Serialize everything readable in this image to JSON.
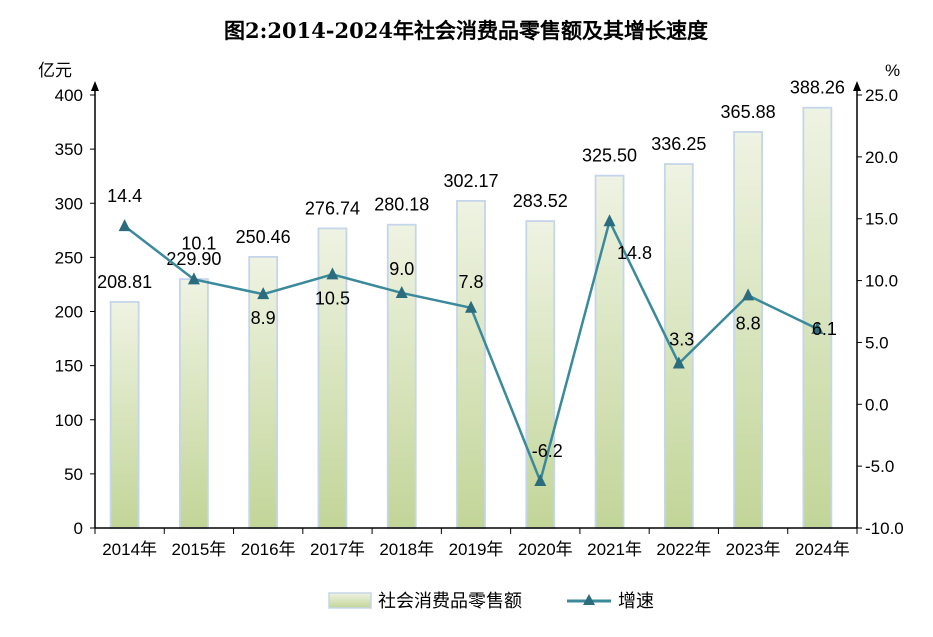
{
  "chart_data": {
    "type": "bar+line",
    "title": "图2:2014-2024年社会消费品零售额及其增长速度",
    "categories": [
      "2014年",
      "2015年",
      "2016年",
      "2017年",
      "2018年",
      "2019年",
      "2020年",
      "2021年",
      "2022年",
      "2023年",
      "2024年"
    ],
    "ylabel_left": "亿元",
    "ylabel_right": "%",
    "ylim_left": [
      0,
      400
    ],
    "yticks_left": [
      "0",
      "50",
      "100",
      "150",
      "200",
      "250",
      "300",
      "350",
      "400"
    ],
    "ylim_right": [
      -10,
      25
    ],
    "yticks_right": [
      "-10.0",
      "-5.0",
      "0.0",
      "5.0",
      "10.0",
      "15.0",
      "20.0",
      "25.0"
    ],
    "grid": false,
    "legend_position": "bottom",
    "series": [
      {
        "name": "社会消费品零售额",
        "type": "bar",
        "axis": "left",
        "values": [
          208.81,
          229.9,
          250.46,
          276.74,
          280.18,
          302.17,
          283.52,
          325.5,
          336.25,
          365.88,
          388.26
        ],
        "labels": [
          "208.81",
          "229.90",
          "250.46",
          "276.74",
          "280.18",
          "302.17",
          "283.52",
          "325.50",
          "336.25",
          "365.88",
          "388.26"
        ]
      },
      {
        "name": "增速",
        "type": "line",
        "axis": "right",
        "values": [
          14.4,
          10.1,
          8.9,
          10.5,
          9.0,
          7.8,
          -6.2,
          14.8,
          3.3,
          8.8,
          6.1
        ],
        "labels": [
          "14.4",
          "10.1",
          "8.9",
          "10.5",
          "9.0",
          "7.8",
          "-6.2",
          "14.8",
          "3.3",
          "8.8",
          "6.1"
        ]
      }
    ],
    "colors": {
      "bar_top": "#eff3e3",
      "bar_bottom": "#c2d598",
      "bar_border": "#c5d5ea",
      "line": "#3b8a9b",
      "marker": "#2b6d7f"
    }
  }
}
